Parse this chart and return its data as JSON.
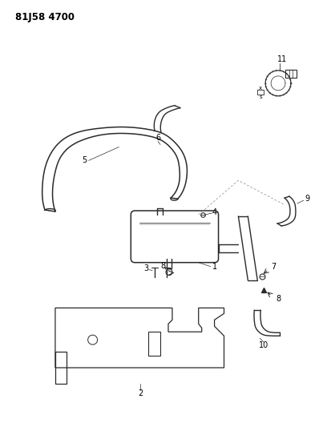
{
  "title": "81J58 4700",
  "background_color": "#ffffff",
  "line_color": "#2a2a2a",
  "fig_width": 4.13,
  "fig_height": 5.33,
  "dpi": 100
}
